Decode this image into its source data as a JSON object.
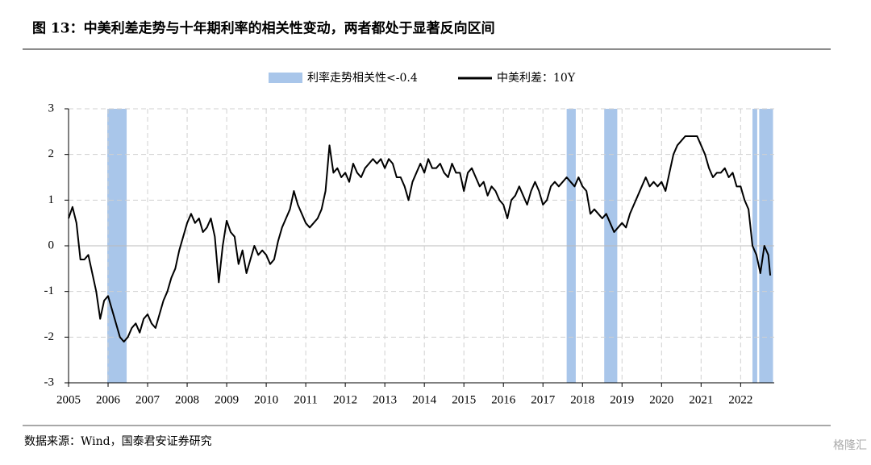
{
  "header": {
    "title": "图 13：中美利差走势与十年期利率的相关性变动，两者都处于显著反向区间"
  },
  "chart_data": {
    "type": "line",
    "highlight": {
      "name": "利率走势相关性<-0.4",
      "color": "#a9c6ea",
      "ranges": [
        [
          2005.98,
          2006.47
        ],
        [
          2017.6,
          2017.83
        ],
        [
          2018.55,
          2018.88
        ],
        [
          2022.3,
          2022.42
        ],
        [
          2022.47,
          2022.82
        ]
      ]
    },
    "x": [
      2005.0,
      2005.1,
      2005.2,
      2005.3,
      2005.4,
      2005.5,
      2005.6,
      2005.7,
      2005.8,
      2005.9,
      2006.0,
      2006.1,
      2006.2,
      2006.3,
      2006.4,
      2006.5,
      2006.6,
      2006.7,
      2006.8,
      2006.9,
      2007.0,
      2007.1,
      2007.2,
      2007.3,
      2007.4,
      2007.5,
      2007.6,
      2007.7,
      2007.8,
      2007.9,
      2008.0,
      2008.1,
      2008.2,
      2008.3,
      2008.4,
      2008.5,
      2008.6,
      2008.7,
      2008.8,
      2008.9,
      2009.0,
      2009.1,
      2009.2,
      2009.3,
      2009.4,
      2009.5,
      2009.6,
      2009.7,
      2009.8,
      2009.9,
      2010.0,
      2010.1,
      2010.2,
      2010.3,
      2010.4,
      2010.5,
      2010.6,
      2010.7,
      2010.8,
      2010.9,
      2011.0,
      2011.1,
      2011.2,
      2011.3,
      2011.4,
      2011.5,
      2011.6,
      2011.7,
      2011.8,
      2011.9,
      2012.0,
      2012.1,
      2012.2,
      2012.3,
      2012.4,
      2012.5,
      2012.6,
      2012.7,
      2012.8,
      2012.9,
      2013.0,
      2013.1,
      2013.2,
      2013.3,
      2013.4,
      2013.5,
      2013.6,
      2013.7,
      2013.8,
      2013.9,
      2014.0,
      2014.1,
      2014.2,
      2014.3,
      2014.4,
      2014.5,
      2014.6,
      2014.7,
      2014.8,
      2014.9,
      2015.0,
      2015.1,
      2015.2,
      2015.3,
      2015.4,
      2015.5,
      2015.6,
      2015.7,
      2015.8,
      2015.9,
      2016.0,
      2016.1,
      2016.2,
      2016.3,
      2016.4,
      2016.5,
      2016.6,
      2016.7,
      2016.8,
      2016.9,
      2017.0,
      2017.1,
      2017.2,
      2017.3,
      2017.4,
      2017.5,
      2017.6,
      2017.7,
      2017.8,
      2017.9,
      2018.0,
      2018.1,
      2018.2,
      2018.3,
      2018.4,
      2018.5,
      2018.6,
      2018.7,
      2018.8,
      2018.9,
      2019.0,
      2019.1,
      2019.2,
      2019.3,
      2019.4,
      2019.5,
      2019.6,
      2019.7,
      2019.8,
      2019.9,
      2020.0,
      2020.1,
      2020.2,
      2020.3,
      2020.4,
      2020.5,
      2020.6,
      2020.7,
      2020.8,
      2020.9,
      2021.0,
      2021.1,
      2021.2,
      2021.3,
      2021.4,
      2021.5,
      2021.6,
      2021.7,
      2021.8,
      2021.9,
      2022.0,
      2022.1,
      2022.2,
      2022.3,
      2022.4,
      2022.5,
      2022.6,
      2022.7,
      2022.75
    ],
    "series": [
      {
        "name": "中美利差：10Y",
        "color": "#000000",
        "values": [
          0.6,
          0.85,
          0.5,
          -0.3,
          -0.3,
          -0.2,
          -0.6,
          -1.0,
          -1.6,
          -1.2,
          -1.1,
          -1.4,
          -1.7,
          -2.0,
          -2.1,
          -2.0,
          -1.8,
          -1.7,
          -1.9,
          -1.6,
          -1.5,
          -1.7,
          -1.8,
          -1.5,
          -1.2,
          -1.0,
          -0.7,
          -0.5,
          -0.1,
          0.2,
          0.5,
          0.7,
          0.5,
          0.6,
          0.3,
          0.4,
          0.6,
          0.2,
          -0.8,
          0.0,
          0.55,
          0.3,
          0.2,
          -0.4,
          -0.1,
          -0.6,
          -0.3,
          0.0,
          -0.2,
          -0.1,
          -0.2,
          -0.4,
          -0.3,
          0.1,
          0.4,
          0.6,
          0.8,
          1.2,
          0.9,
          0.7,
          0.5,
          0.4,
          0.5,
          0.6,
          0.8,
          1.2,
          2.2,
          1.6,
          1.7,
          1.5,
          1.6,
          1.4,
          1.8,
          1.6,
          1.5,
          1.7,
          1.8,
          1.9,
          1.8,
          1.9,
          1.7,
          1.9,
          1.8,
          1.5,
          1.5,
          1.3,
          1.0,
          1.4,
          1.6,
          1.8,
          1.6,
          1.9,
          1.7,
          1.7,
          1.8,
          1.6,
          1.5,
          1.8,
          1.6,
          1.6,
          1.2,
          1.6,
          1.7,
          1.5,
          1.3,
          1.4,
          1.1,
          1.3,
          1.2,
          1.0,
          0.9,
          0.6,
          1.0,
          1.1,
          1.3,
          1.1,
          0.9,
          1.2,
          1.4,
          1.2,
          0.9,
          1.0,
          1.3,
          1.4,
          1.3,
          1.4,
          1.5,
          1.4,
          1.3,
          1.5,
          1.3,
          1.2,
          0.7,
          0.8,
          0.7,
          0.6,
          0.7,
          0.5,
          0.3,
          0.4,
          0.5,
          0.4,
          0.7,
          0.9,
          1.1,
          1.3,
          1.5,
          1.3,
          1.4,
          1.3,
          1.4,
          1.2,
          1.6,
          2.0,
          2.2,
          2.3,
          2.4,
          2.4,
          2.4,
          2.4,
          2.2,
          2.0,
          1.7,
          1.5,
          1.6,
          1.6,
          1.7,
          1.5,
          1.6,
          1.3,
          1.3,
          1.0,
          0.8,
          0.0,
          -0.2,
          -0.6,
          0.0,
          -0.2,
          -0.65
        ]
      }
    ],
    "xlim": [
      2005,
      2022.85
    ],
    "xticks": [
      2005,
      2006,
      2007,
      2008,
      2009,
      2010,
      2011,
      2012,
      2013,
      2014,
      2015,
      2016,
      2017,
      2018,
      2019,
      2020,
      2021,
      2022
    ],
    "ylim": [
      -3,
      3
    ],
    "yticks": [
      -3,
      -2,
      -1,
      0,
      1,
      2,
      3
    ],
    "grid": true
  },
  "footer": {
    "source": "数据来源：Wind，国泰君安证券研究",
    "watermark": "格隆汇"
  }
}
